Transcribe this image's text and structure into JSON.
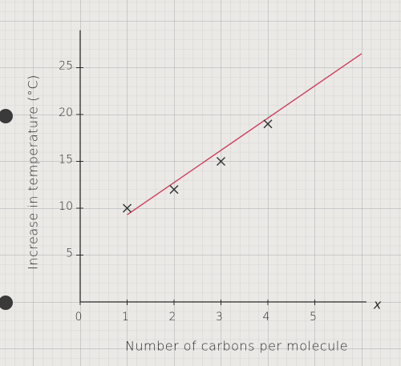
{
  "chart_data": {
    "type": "scatter",
    "x_label": "Number of carbons per molecule",
    "y_label": "Increase in temperature (°C)",
    "x_axis_symbol": "x",
    "xlim": [
      0,
      6.1
    ],
    "ylim": [
      0,
      29
    ],
    "xticks": [
      0,
      1,
      2,
      3,
      4,
      5
    ],
    "yticks": [
      5,
      10,
      15,
      20,
      25
    ],
    "points": {
      "color": "#2e2e2e",
      "x": [
        1,
        2,
        3,
        4
      ],
      "values": [
        10,
        12,
        15,
        19
      ]
    },
    "fit_line": {
      "color": "#cc3f5c",
      "x": [
        1,
        6
      ],
      "values": [
        9.3,
        26.5
      ]
    }
  }
}
